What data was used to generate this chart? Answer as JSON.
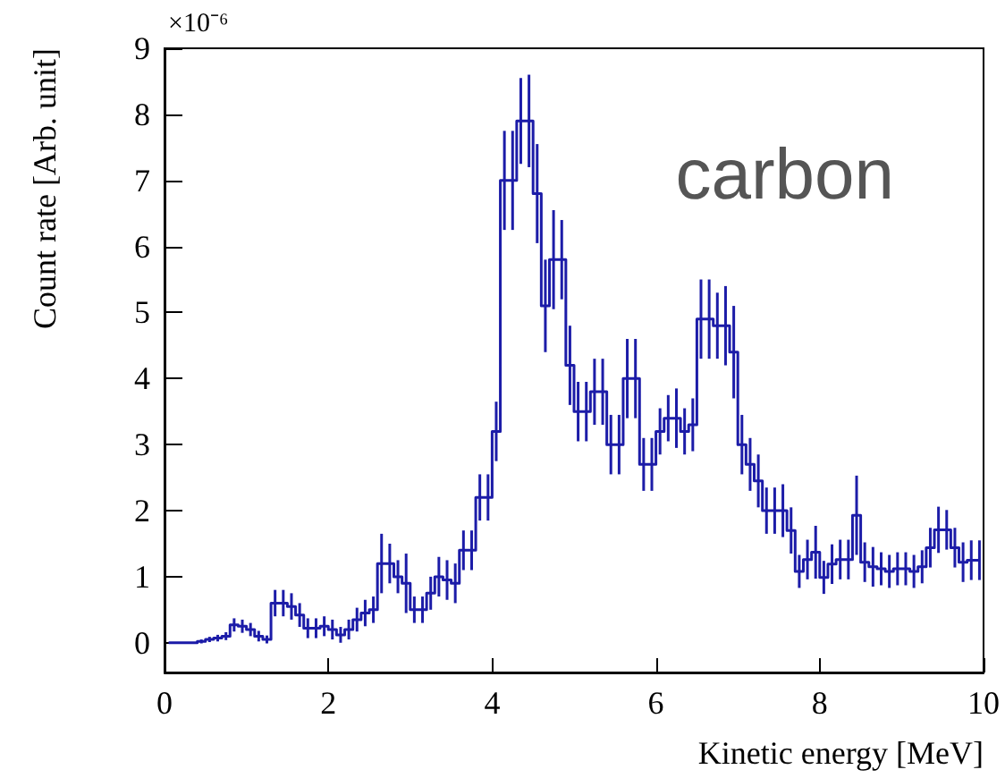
{
  "chart_data": {
    "type": "step",
    "xlabel": "Kinetic energy [MeV]",
    "ylabel": "Count rate [Arb. unit]",
    "annotations": [
      "×10⁻⁶",
      "carbon"
    ],
    "x": [
      0.05,
      0.15,
      0.25,
      0.35,
      0.45,
      0.55,
      0.65,
      0.75,
      0.85,
      0.95,
      1.05,
      1.15,
      1.25,
      1.35,
      1.45,
      1.55,
      1.65,
      1.75,
      1.85,
      1.95,
      2.05,
      2.15,
      2.25,
      2.35,
      2.45,
      2.55,
      2.65,
      2.75,
      2.85,
      2.95,
      3.05,
      3.15,
      3.25,
      3.35,
      3.45,
      3.55,
      3.65,
      3.75,
      3.85,
      3.95,
      4.05,
      4.15,
      4.25,
      4.35,
      4.45,
      4.55,
      4.65,
      4.75,
      4.85,
      4.95,
      5.05,
      5.15,
      5.25,
      5.35,
      5.45,
      5.55,
      5.65,
      5.75,
      5.85,
      5.95,
      6.05,
      6.15,
      6.25,
      6.35,
      6.45,
      6.55,
      6.65,
      6.75,
      6.85,
      6.95,
      7.05,
      7.15,
      7.25,
      7.35,
      7.45,
      7.55,
      7.65,
      7.75,
      7.85,
      7.95,
      8.05,
      8.15,
      8.25,
      8.35,
      8.45,
      8.55,
      8.65,
      8.75,
      8.85,
      8.95,
      9.05,
      9.15,
      9.25,
      9.35,
      9.45,
      9.55,
      9.65,
      9.75,
      9.85,
      9.95
    ],
    "values": [
      0,
      0,
      0,
      0,
      0.02,
      0.05,
      0.07,
      0.1,
      0.27,
      0.25,
      0.2,
      0.1,
      0.05,
      0.6,
      0.6,
      0.55,
      0.42,
      0.22,
      0.22,
      0.25,
      0.2,
      0.12,
      0.2,
      0.35,
      0.45,
      0.5,
      1.2,
      1.2,
      1,
      0.9,
      0.5,
      0.5,
      0.75,
      1,
      0.95,
      0.9,
      1.4,
      1.4,
      2.2,
      2.2,
      3.2,
      7,
      7,
      7.9,
      7.9,
      6.8,
      5.1,
      5.8,
      5.8,
      4.2,
      3.5,
      3.5,
      3.8,
      3.8,
      3,
      3,
      4,
      4,
      2.7,
      2.7,
      3.2,
      3.4,
      3.4,
      3.2,
      3.3,
      4.9,
      4.9,
      4.8,
      4.8,
      4.4,
      3,
      2.7,
      2.45,
      2,
      2,
      2,
      1.7,
      1.08,
      1.26,
      1.37,
      0.99,
      1.19,
      1.26,
      1.26,
      1.93,
      1.22,
      1.15,
      1.12,
      1.08,
      1.12,
      1.12,
      1.08,
      1.15,
      1.44,
      1.71,
      1.71,
      1.44,
      1.22,
      1.25,
      1.25
    ],
    "errors": [
      null,
      null,
      null,
      null,
      0.03,
      0.04,
      0.05,
      0.06,
      0.1,
      0.1,
      0.1,
      0.08,
      0.06,
      0.2,
      0.2,
      0.2,
      0.18,
      0.15,
      0.15,
      0.15,
      0.15,
      0.12,
      0.15,
      0.18,
      0.2,
      0.2,
      0.45,
      0.3,
      0.25,
      0.45,
      0.2,
      0.2,
      0.25,
      0.3,
      0.3,
      0.3,
      0.3,
      0.3,
      0.35,
      0.35,
      0.45,
      0.75,
      0.75,
      0.65,
      0.7,
      0.75,
      0.7,
      0.75,
      0.6,
      0.6,
      0.45,
      0.45,
      0.5,
      0.5,
      0.45,
      0.45,
      0.6,
      0.6,
      0.4,
      0.4,
      0.35,
      0.35,
      0.45,
      0.35,
      0.4,
      0.6,
      0.6,
      0.5,
      0.6,
      0.7,
      0.45,
      0.4,
      0.4,
      0.35,
      0.35,
      0.4,
      0.35,
      0.25,
      0.3,
      0.4,
      0.25,
      0.3,
      0.3,
      0.3,
      0.6,
      0.3,
      0.3,
      0.25,
      0.25,
      0.25,
      0.25,
      0.25,
      0.25,
      0.3,
      0.35,
      0.3,
      0.3,
      0.3,
      0.3,
      0.3
    ],
    "color": "#1c1ca8",
    "line_style": "solid",
    "marker": "none",
    "grid": false,
    "xlim": [
      0,
      10
    ],
    "xticks": [
      0,
      2,
      4,
      6,
      8,
      10
    ],
    "ylim": [
      -0.45,
      9
    ],
    "yticks": [
      0,
      1,
      2,
      3,
      4,
      5,
      6,
      7,
      8,
      9
    ]
  }
}
